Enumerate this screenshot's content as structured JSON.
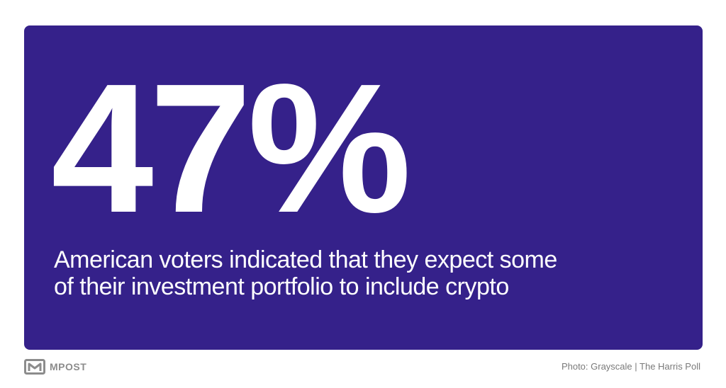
{
  "card": {
    "background_color": "#35218a",
    "text_color": "#ffffff"
  },
  "stat": {
    "value": "47%",
    "caption_line1": "American voters indicated that they expect some",
    "caption_line2": "of their investment portfolio to include crypto"
  },
  "footer": {
    "logo_icon": "mpost-logo-icon",
    "logo_text": "MPOST",
    "photo_credit": "Photo: Grayscale | The Harris Poll"
  }
}
